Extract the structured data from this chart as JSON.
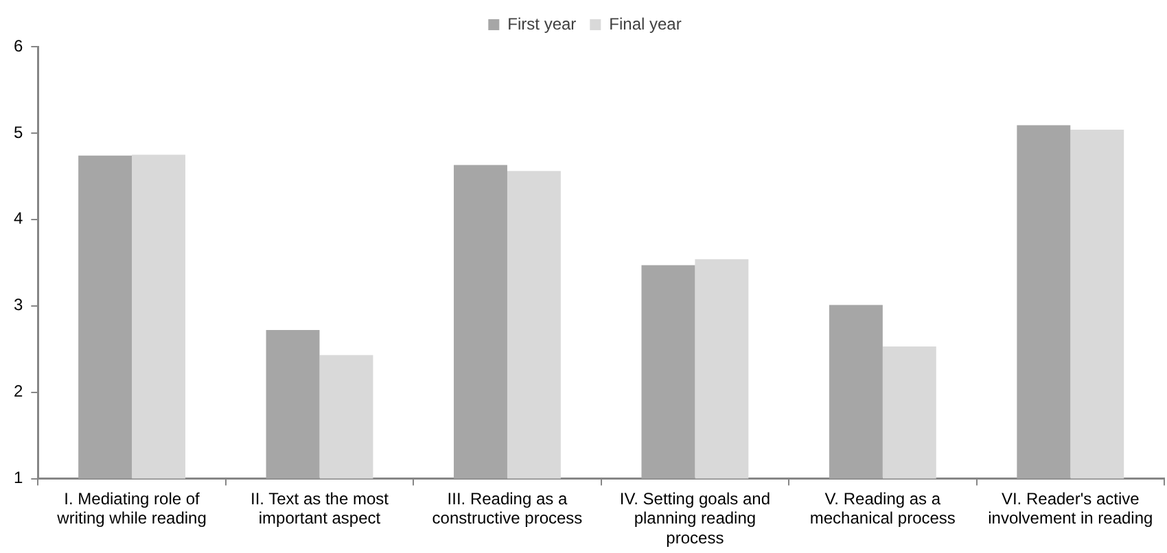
{
  "chart_data": {
    "type": "bar",
    "categories": [
      "I. Mediating role of writing while reading",
      "II. Text as the most important aspect",
      "III. Reading as a constructive process",
      "IV. Setting goals and planning reading process",
      "V. Reading as a mechanical process",
      "VI. Reader's active involvement in reading"
    ],
    "series": [
      {
        "name": "First year",
        "color": "#a6a6a6",
        "values": [
          4.74,
          2.72,
          4.63,
          3.47,
          3.01,
          5.09
        ]
      },
      {
        "name": "Final year",
        "color": "#d9d9d9",
        "values": [
          4.75,
          2.43,
          4.56,
          3.54,
          2.53,
          5.04
        ]
      }
    ],
    "ylim": [
      1,
      6
    ],
    "yticks": [
      1,
      2,
      3,
      4,
      5,
      6
    ],
    "grid": false,
    "legend": "top"
  }
}
